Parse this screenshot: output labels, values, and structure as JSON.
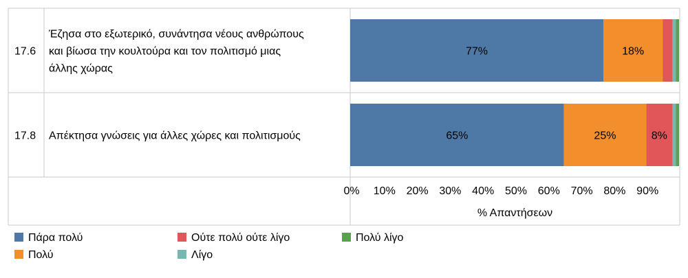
{
  "chart_data": {
    "type": "bar",
    "orientation": "horizontal",
    "stacked": true,
    "rows": [
      {
        "code": "17.6",
        "label_lines": [
          "Έζησα στο εξωτερικό, συνάντησα νέους ανθρώπους",
          "και βίωσα την κουλτούρα και τον πολιτισμό μιας",
          "άλλης χώρας"
        ]
      },
      {
        "code": "17.8",
        "label_lines": [
          "Απέκτησα γνώσεις για άλλες χώρες και πολιτισμούς"
        ]
      }
    ],
    "series": [
      {
        "name": "Πάρα πολύ",
        "color": "#4e79a7",
        "values": [
          77,
          65
        ],
        "labels": [
          "77%",
          "65%"
        ]
      },
      {
        "name": "Πολύ",
        "color": "#f28e2b",
        "values": [
          18,
          25
        ],
        "labels": [
          "18%",
          "25%"
        ]
      },
      {
        "name": "Ούτε πολύ ούτε λίγο",
        "color": "#e15759",
        "values": [
          3,
          8
        ],
        "labels": [
          "",
          "8%"
        ]
      },
      {
        "name": "Λίγο",
        "color": "#76b7b2",
        "values": [
          1,
          1
        ],
        "labels": [
          "",
          ""
        ]
      },
      {
        "name": "Πολύ λίγο",
        "color": "#59a14f",
        "values": [
          1,
          1
        ],
        "labels": [
          "",
          ""
        ]
      }
    ],
    "xaxis": {
      "label": "% Απαντήσεων",
      "range": [
        0,
        100
      ],
      "ticks": [
        0,
        10,
        20,
        30,
        40,
        50,
        60,
        70,
        80,
        90
      ],
      "tick_labels": [
        "0%",
        "10%",
        "20%",
        "30%",
        "40%",
        "50%",
        "60%",
        "70%",
        "80%",
        "90%"
      ]
    },
    "legend": {
      "position": "bottom",
      "order": [
        0,
        2,
        4,
        1,
        3
      ]
    }
  }
}
